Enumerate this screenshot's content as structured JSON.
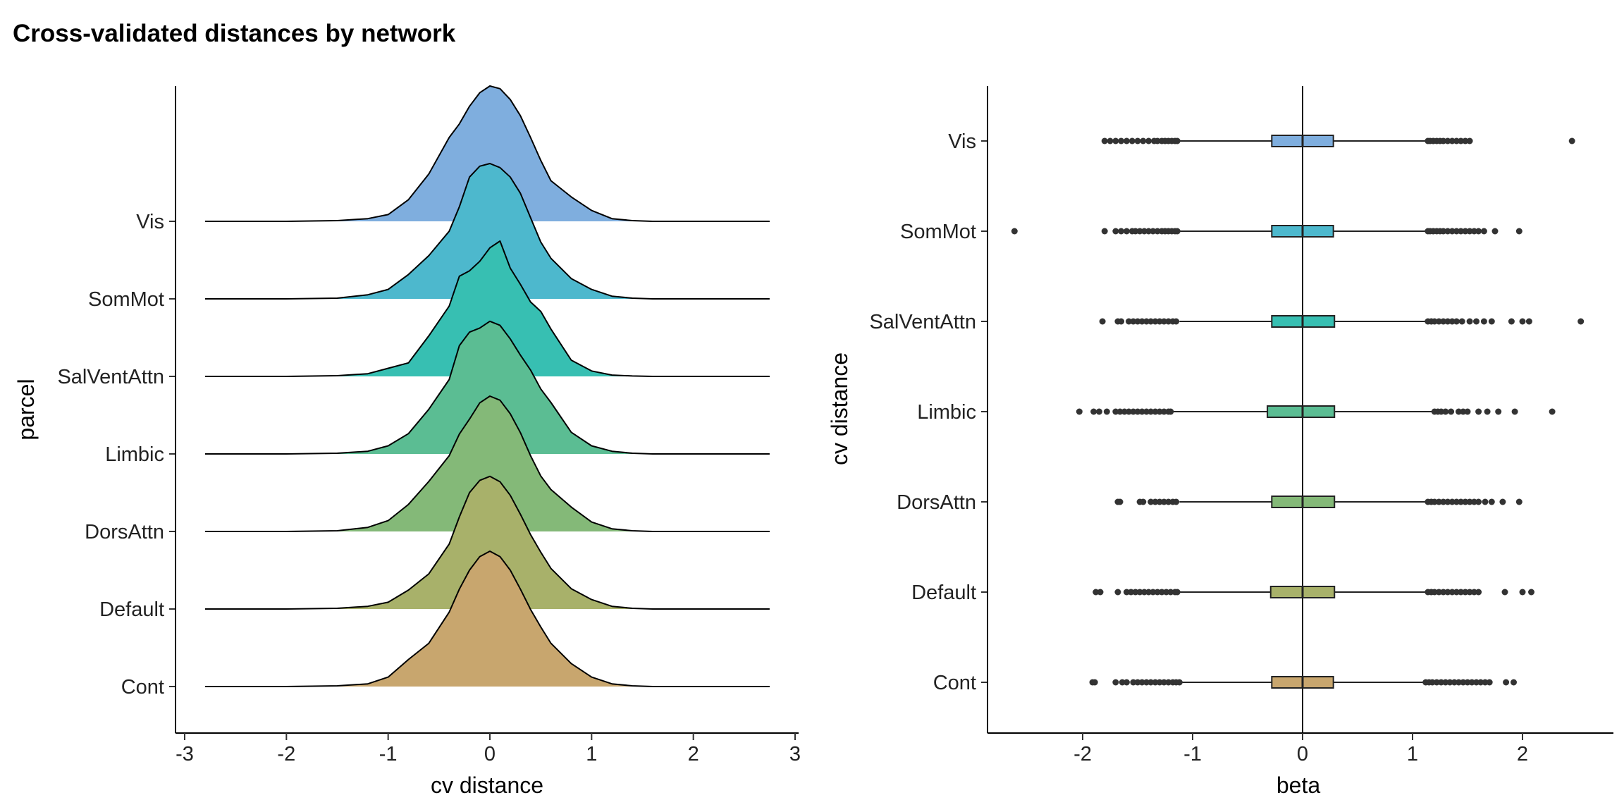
{
  "title": "Cross-validated distances by network",
  "chart_data": [
    {
      "type": "ridgeline",
      "xlabel": "cv distance",
      "ylabel": "parcel",
      "xlim": [
        -3,
        3
      ],
      "xticks": [
        "-3",
        "-2",
        "-1",
        "0",
        "1",
        "2",
        "3"
      ],
      "categories": [
        "Vis",
        "SomMot",
        "SalVentAttn",
        "Limbic",
        "DorsAttn",
        "Default",
        "Cont"
      ],
      "colors": [
        "#7faede",
        "#4db8cd",
        "#37bfb2",
        "#5bbd93",
        "#84b978",
        "#a8b16a",
        "#c8a66e"
      ],
      "density_x": [
        -2.8,
        -2.0,
        -1.5,
        -1.2,
        -1.0,
        -0.8,
        -0.6,
        -0.4,
        -0.3,
        -0.2,
        -0.1,
        0.0,
        0.1,
        0.2,
        0.3,
        0.4,
        0.5,
        0.6,
        0.8,
        1.0,
        1.2,
        1.4,
        1.6,
        2.0,
        2.75
      ],
      "series": [
        {
          "name": "Vis",
          "density": [
            0,
            0,
            0.005,
            0.02,
            0.05,
            0.16,
            0.35,
            0.62,
            0.72,
            0.85,
            0.95,
            1.0,
            0.98,
            0.9,
            0.78,
            0.62,
            0.45,
            0.3,
            0.18,
            0.08,
            0.02,
            0.005,
            0,
            0,
            0
          ]
        },
        {
          "name": "SomMot",
          "density": [
            0,
            0,
            0.005,
            0.03,
            0.07,
            0.18,
            0.32,
            0.5,
            0.68,
            0.9,
            0.98,
            1.0,
            0.97,
            0.9,
            0.78,
            0.6,
            0.42,
            0.3,
            0.15,
            0.07,
            0.02,
            0.005,
            0,
            0,
            0
          ]
        },
        {
          "name": "SalVentAttn",
          "density": [
            0,
            0,
            0.005,
            0.02,
            0.06,
            0.1,
            0.3,
            0.52,
            0.74,
            0.78,
            0.85,
            0.95,
            1.0,
            0.8,
            0.68,
            0.55,
            0.48,
            0.35,
            0.12,
            0.04,
            0.01,
            0.003,
            0,
            0,
            0
          ]
        },
        {
          "name": "Limbic",
          "density": [
            0,
            0,
            0.005,
            0.02,
            0.06,
            0.15,
            0.33,
            0.55,
            0.8,
            0.9,
            0.93,
            0.98,
            0.95,
            0.85,
            0.73,
            0.62,
            0.48,
            0.38,
            0.16,
            0.06,
            0.02,
            0.005,
            0,
            0,
            0
          ]
        },
        {
          "name": "DorsAttn",
          "density": [
            0,
            0,
            0.005,
            0.03,
            0.08,
            0.2,
            0.37,
            0.56,
            0.72,
            0.83,
            0.95,
            1.0,
            0.97,
            0.87,
            0.73,
            0.56,
            0.41,
            0.31,
            0.18,
            0.07,
            0.02,
            0.005,
            0,
            0,
            0
          ]
        },
        {
          "name": "Default",
          "density": [
            0,
            0,
            0.005,
            0.02,
            0.05,
            0.14,
            0.26,
            0.48,
            0.68,
            0.86,
            0.95,
            0.98,
            0.94,
            0.84,
            0.7,
            0.55,
            0.42,
            0.3,
            0.15,
            0.07,
            0.02,
            0.005,
            0,
            0,
            0
          ]
        },
        {
          "name": "Cont",
          "density": [
            0,
            0,
            0.005,
            0.02,
            0.07,
            0.2,
            0.32,
            0.55,
            0.72,
            0.86,
            0.96,
            1.0,
            0.96,
            0.86,
            0.72,
            0.57,
            0.44,
            0.32,
            0.17,
            0.07,
            0.02,
            0.005,
            0,
            0,
            0
          ]
        }
      ]
    },
    {
      "type": "boxplot",
      "xlabel": "beta",
      "ylabel": "cv distance",
      "xlim": [
        -2.9,
        2.8
      ],
      "xticks": [
        "-2",
        "-1",
        "0",
        "1",
        "2"
      ],
      "vline": 0,
      "categories": [
        "Vis",
        "SomMot",
        "SalVentAttn",
        "Limbic",
        "DorsAttn",
        "Default",
        "Cont"
      ],
      "colors": [
        "#7faede",
        "#4db8cd",
        "#37bfb2",
        "#5bbd93",
        "#84b978",
        "#a8b16a",
        "#c8a66e"
      ],
      "series": [
        {
          "name": "Vis",
          "q1": -0.28,
          "median": 0.0,
          "q3": 0.28,
          "whisker_low": -1.12,
          "whisker_high": 1.12,
          "outliers": [
            -1.8,
            -1.75,
            -1.7,
            -1.65,
            -1.6,
            -1.55,
            -1.5,
            -1.45,
            -1.4,
            -1.35,
            -1.32,
            -1.28,
            -1.25,
            -1.22,
            -1.19,
            -1.16,
            -1.14,
            1.14,
            1.16,
            1.19,
            1.22,
            1.25,
            1.28,
            1.32,
            1.36,
            1.4,
            1.44,
            1.48,
            1.52,
            2.45
          ]
        },
        {
          "name": "SomMot",
          "q1": -0.28,
          "median": 0.0,
          "q3": 0.28,
          "whisker_low": -1.12,
          "whisker_high": 1.12,
          "outliers": [
            -2.62,
            -1.8,
            -1.7,
            -1.65,
            -1.6,
            -1.55,
            -1.52,
            -1.48,
            -1.44,
            -1.4,
            -1.36,
            -1.32,
            -1.28,
            -1.25,
            -1.22,
            -1.19,
            -1.16,
            -1.14,
            1.14,
            1.16,
            1.19,
            1.22,
            1.25,
            1.28,
            1.32,
            1.36,
            1.4,
            1.44,
            1.48,
            1.52,
            1.56,
            1.6,
            1.65,
            1.75,
            1.97
          ]
        },
        {
          "name": "SalVentAttn",
          "q1": -0.28,
          "median": 0.0,
          "q3": 0.29,
          "whisker_low": -1.12,
          "whisker_high": 1.12,
          "outliers": [
            -1.82,
            -1.68,
            -1.65,
            -1.58,
            -1.54,
            -1.5,
            -1.46,
            -1.42,
            -1.38,
            -1.34,
            -1.3,
            -1.26,
            -1.22,
            -1.18,
            -1.15,
            1.14,
            1.17,
            1.2,
            1.24,
            1.28,
            1.32,
            1.36,
            1.4,
            1.45,
            1.52,
            1.58,
            1.65,
            1.72,
            1.9,
            2.0,
            2.06,
            2.53
          ]
        },
        {
          "name": "Limbic",
          "q1": -0.32,
          "median": 0.0,
          "q3": 0.29,
          "whisker_low": -1.18,
          "whisker_high": 1.18,
          "outliers": [
            -2.03,
            -1.9,
            -1.85,
            -1.78,
            -1.7,
            -1.66,
            -1.62,
            -1.58,
            -1.54,
            -1.5,
            -1.46,
            -1.42,
            -1.38,
            -1.34,
            -1.3,
            -1.26,
            -1.22,
            -1.2,
            1.2,
            1.23,
            1.26,
            1.3,
            1.35,
            1.42,
            1.46,
            1.5,
            1.6,
            1.68,
            1.78,
            1.93,
            2.27
          ]
        },
        {
          "name": "DorsAttn",
          "q1": -0.28,
          "median": 0.0,
          "q3": 0.29,
          "whisker_low": -1.12,
          "whisker_high": 1.12,
          "outliers": [
            -1.68,
            -1.66,
            -1.48,
            -1.45,
            -1.38,
            -1.34,
            -1.3,
            -1.26,
            -1.22,
            -1.18,
            -1.15,
            1.14,
            1.17,
            1.2,
            1.24,
            1.28,
            1.32,
            1.36,
            1.4,
            1.44,
            1.48,
            1.52,
            1.56,
            1.6,
            1.66,
            1.72,
            1.82,
            1.97
          ]
        },
        {
          "name": "Default",
          "q1": -0.29,
          "median": 0.0,
          "q3": 0.29,
          "whisker_low": -1.12,
          "whisker_high": 1.12,
          "outliers": [
            -1.88,
            -1.84,
            -1.68,
            -1.6,
            -1.56,
            -1.52,
            -1.48,
            -1.44,
            -1.4,
            -1.36,
            -1.32,
            -1.28,
            -1.24,
            -1.2,
            -1.16,
            -1.14,
            1.14,
            1.17,
            1.2,
            1.24,
            1.28,
            1.32,
            1.36,
            1.4,
            1.44,
            1.48,
            1.52,
            1.56,
            1.6,
            1.84,
            2.0,
            2.08
          ]
        },
        {
          "name": "Cont",
          "q1": -0.28,
          "median": 0.0,
          "q3": 0.28,
          "whisker_low": -1.1,
          "whisker_high": 1.1,
          "outliers": [
            -1.91,
            -1.89,
            -1.7,
            -1.64,
            -1.6,
            -1.54,
            -1.5,
            -1.46,
            -1.42,
            -1.38,
            -1.34,
            -1.3,
            -1.26,
            -1.22,
            -1.18,
            -1.15,
            -1.12,
            1.12,
            1.15,
            1.18,
            1.22,
            1.26,
            1.3,
            1.34,
            1.38,
            1.42,
            1.46,
            1.5,
            1.54,
            1.58,
            1.62,
            1.66,
            1.7,
            1.85,
            1.92
          ]
        }
      ]
    }
  ]
}
